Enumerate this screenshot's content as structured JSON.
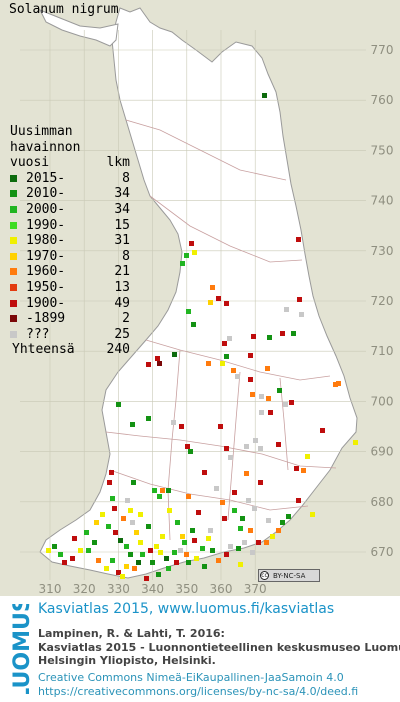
{
  "species": "Solanum nigrum",
  "legend": {
    "heading": [
      "Uusimman",
      "havainnon",
      "vuosi",
      "lkm"
    ],
    "rows": [
      {
        "label": "2015-",
        "count": "8",
        "color": "#0d6b0d"
      },
      {
        "label": "2010-",
        "count": "34",
        "color": "#139213"
      },
      {
        "label": "2000-",
        "count": "34",
        "color": "#21b521"
      },
      {
        "label": "1990-",
        "count": "15",
        "color": "#3ddc22"
      },
      {
        "label": "1980-",
        "count": "31",
        "color": "#f0f000"
      },
      {
        "label": "1970-",
        "count": "8",
        "color": "#ffd100"
      },
      {
        "label": "1960-",
        "count": "21",
        "color": "#ff7b0d"
      },
      {
        "label": "1950-",
        "count": "13",
        "color": "#e33b0f"
      },
      {
        "label": "1900-",
        "count": "49",
        "color": "#bf0d0d"
      },
      {
        "label": "-1899",
        "count": "2",
        "color": "#7a0707"
      },
      {
        "label": "???",
        "count": "25",
        "color": "#c8c8c8"
      }
    ],
    "total_label": "Yhteensä",
    "total_count": "240"
  },
  "grid": {
    "x_labels": [
      "310",
      "320",
      "330",
      "340",
      "350",
      "360",
      "370"
    ],
    "y_labels": [
      "770",
      "760",
      "750",
      "740",
      "730",
      "720",
      "710",
      "700",
      "690",
      "680",
      "670"
    ]
  },
  "license_badge": {
    "icon": "cc",
    "text": "BY-NC-SA"
  },
  "footer": {
    "logo_text": "LUOMUS",
    "link": "Kasviatlas 2015, www.luomus.fi/kasviatlas",
    "citation": [
      "Lampinen, R. & Lahti, T. 2016:",
      "Kasviatlas 2015 - Luonnontieteellinen keskusmuseo Luomus,",
      "Helsingin Yliopisto, Helsinki."
    ],
    "license": [
      "Creative Commons Nimeä-EiKaupallinen-JaaSamoin 4.0",
      "https://creativecommons.org/licenses/by-nc-sa/4.0/deed.fi"
    ]
  }
}
